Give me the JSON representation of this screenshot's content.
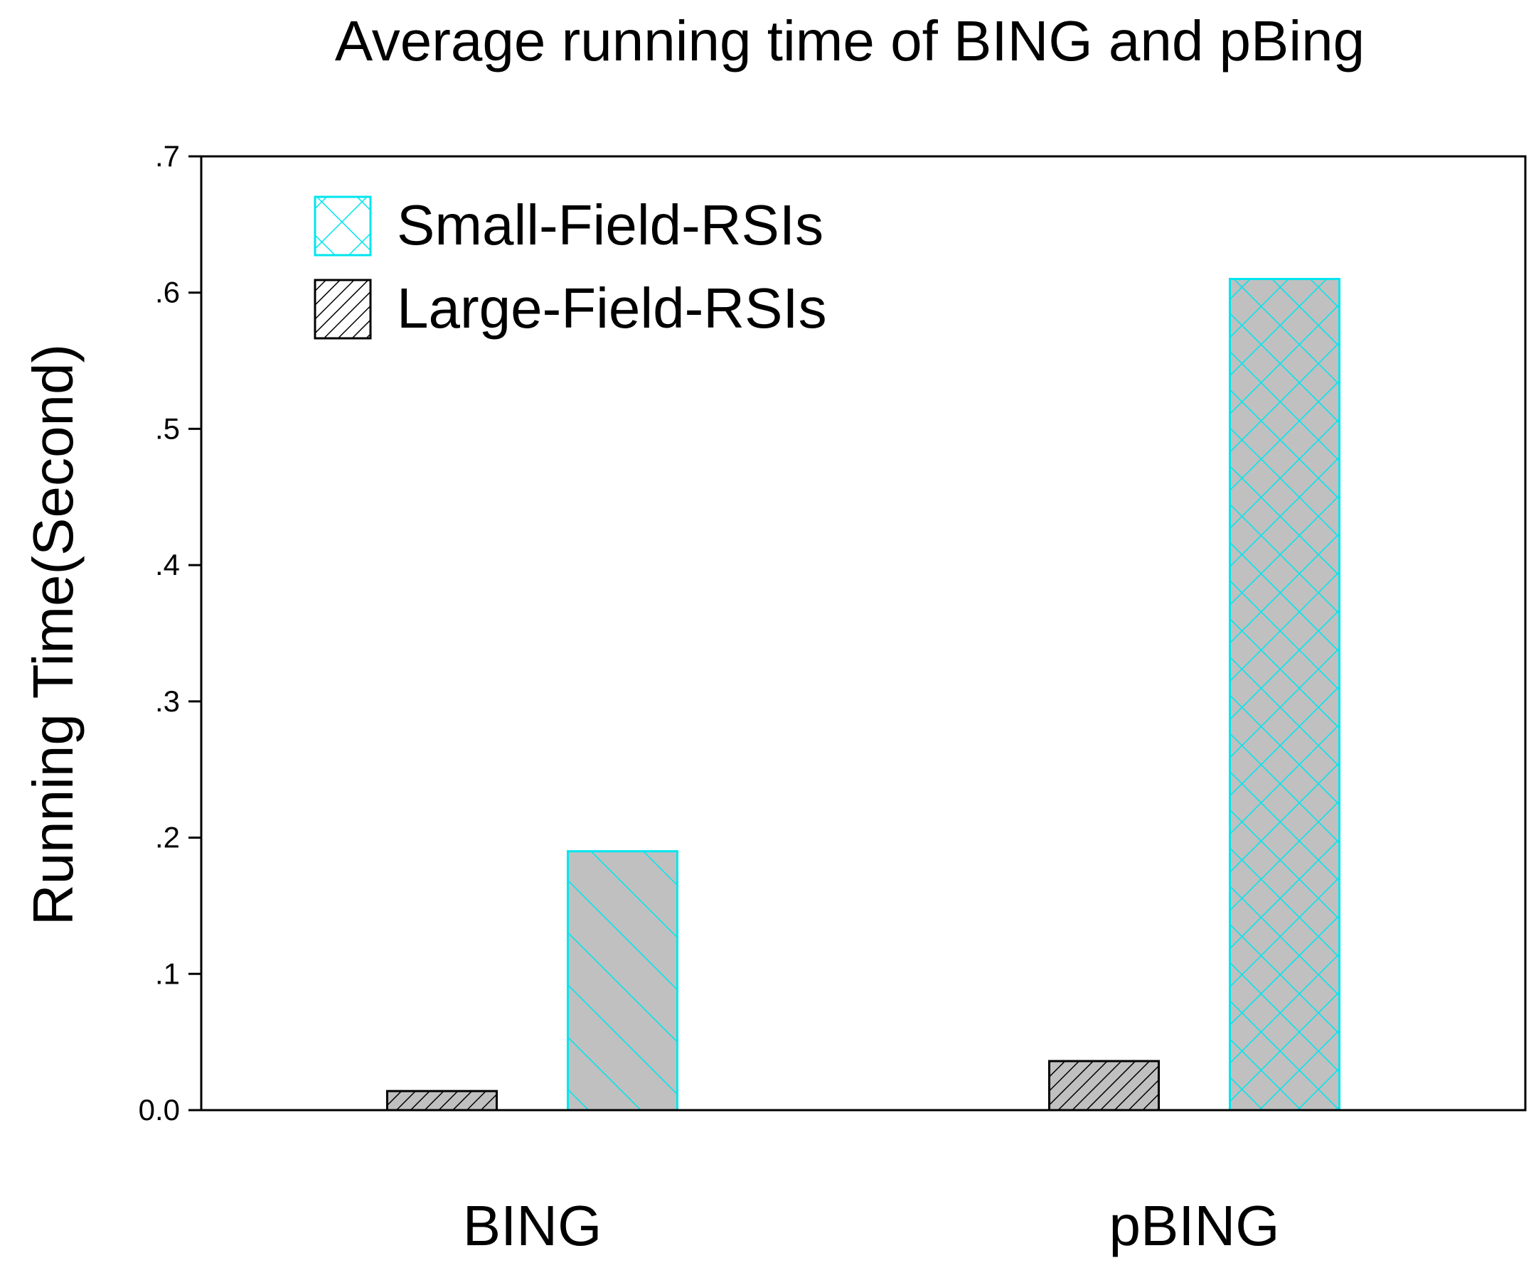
{
  "chart_data": {
    "type": "bar",
    "title": "Average running time of BING and pBing",
    "xlabel": "",
    "ylabel": "Running Time(Second)",
    "ylim": [
      0,
      0.7
    ],
    "yticks": [
      {
        "value": 0.0,
        "label": "0.0"
      },
      {
        "value": 0.1,
        "label": ".1"
      },
      {
        "value": 0.2,
        "label": ".2"
      },
      {
        "value": 0.3,
        "label": ".3"
      },
      {
        "value": 0.4,
        "label": ".4"
      },
      {
        "value": 0.5,
        "label": ".5"
      },
      {
        "value": 0.6,
        "label": ".6"
      },
      {
        "value": 0.7,
        "label": ".7"
      }
    ],
    "categories": [
      "BING",
      "pBING"
    ],
    "grid": false,
    "legend_position": "top-left",
    "legend": [
      {
        "label": "Small-Field-RSIs",
        "pattern": "crosshatch",
        "color": "#00e5ee"
      },
      {
        "label": "Large-Field-RSIs",
        "pattern": "diagonal",
        "color": "#000000"
      }
    ],
    "bars": [
      {
        "category": "BING",
        "value": 0.014,
        "pattern": "diagonal",
        "color": "#000000",
        "fill": "#c0c0c0"
      },
      {
        "category": "BING",
        "value": 0.19,
        "pattern": "backslash",
        "color": "#00e5ee",
        "fill": "#c0c0c0"
      },
      {
        "category": "pBING",
        "value": 0.036,
        "pattern": "diagonal",
        "color": "#000000",
        "fill": "#c0c0c0"
      },
      {
        "category": "pBING",
        "value": 0.61,
        "pattern": "crosshatch",
        "color": "#00e5ee",
        "fill": "#c0c0c0"
      }
    ]
  }
}
